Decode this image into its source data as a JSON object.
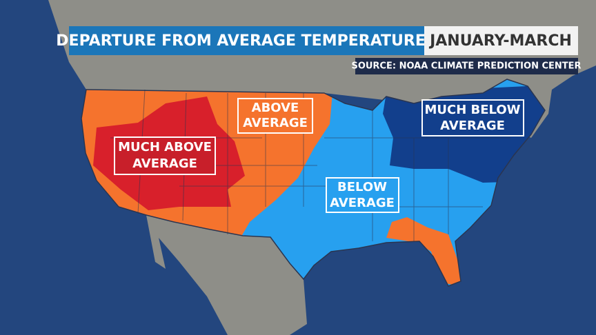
{
  "header": {
    "title": "DEPARTURE FROM AVERAGE TEMPERATURES",
    "period": "JANUARY-MARCH",
    "source": "SOURCE: NOAA CLIMATE PREDICTION CENTER"
  },
  "labels": [
    {
      "lines": [
        "MUCH ABOVE",
        "AVERAGE"
      ]
    },
    {
      "lines": [
        "ABOVE",
        "AVERAGE"
      ]
    },
    {
      "lines": [
        "MUCH BELOW",
        "AVERAGE"
      ]
    },
    {
      "lines": [
        "BELOW",
        "AVERAGE"
      ]
    }
  ]
}
